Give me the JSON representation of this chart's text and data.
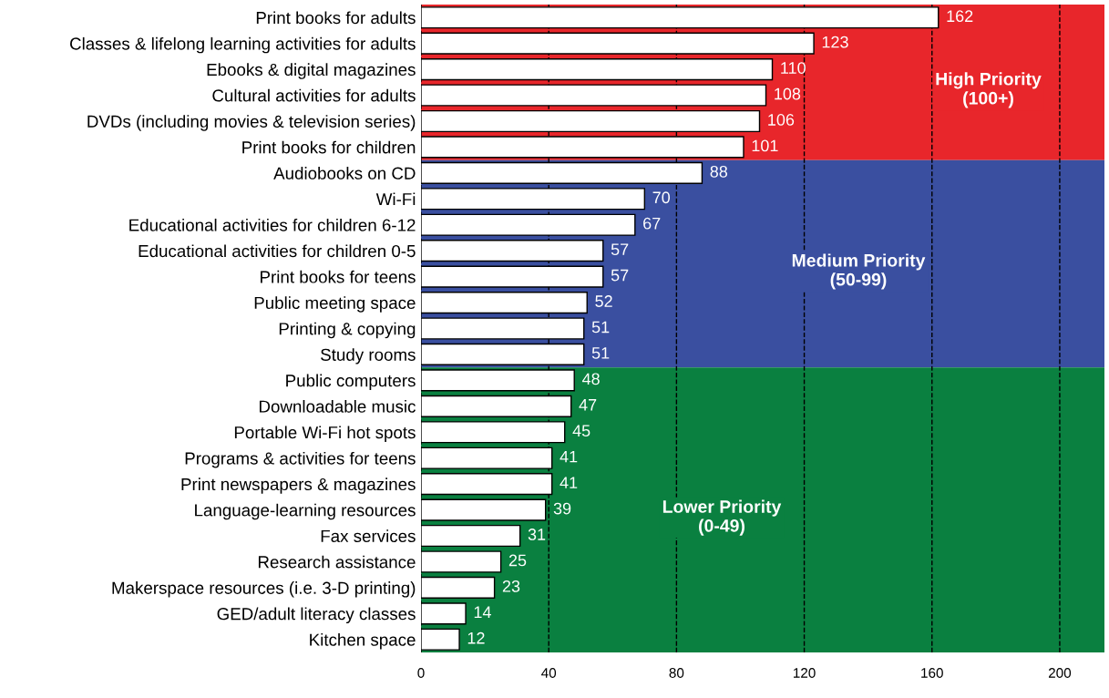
{
  "chart_data": {
    "type": "bar",
    "orientation": "horizontal",
    "categories": [
      "Print books for adults",
      "Classes & lifelong learning activities for adults",
      "Ebooks & digital magazines",
      "Cultural activities for adults",
      "DVDs (including movies & television series)",
      "Print books for children",
      "Audiobooks on CD",
      "Wi-Fi",
      "Educational activities for children 6-12",
      "Educational activities for children 0-5",
      "Print books for teens",
      "Public meeting space",
      "Printing & copying",
      "Study rooms",
      "Public computers",
      "Downloadable music",
      "Portable Wi-Fi hot spots",
      "Programs & activities for teens",
      "Print newspapers & magazines",
      "Language-learning resources",
      "Fax services",
      "Research assistance",
      "Makerspace resources (i.e. 3-D printing)",
      "GED/adult literacy classes",
      "Kitchen space"
    ],
    "values": [
      162,
      123,
      110,
      108,
      106,
      101,
      88,
      70,
      67,
      57,
      57,
      52,
      51,
      51,
      48,
      47,
      45,
      41,
      41,
      39,
      31,
      25,
      23,
      14,
      12
    ],
    "color": "#ffffff",
    "data_labels": true,
    "xlim": [
      0,
      214
    ],
    "xticks": [
      0,
      40,
      80,
      120,
      160,
      200
    ],
    "grid": "x",
    "line_style": "dashed",
    "bands": [
      {
        "axis": "y",
        "from": "Print books for adults",
        "to": "Print books for children",
        "label": "High Priority\n(100+)",
        "color": "#e8262b"
      },
      {
        "axis": "y",
        "from": "Audiobooks on CD",
        "to": "Study rooms",
        "label": "Medium Priority\n(50-99)",
        "color": "#3a4fa0"
      },
      {
        "axis": "y",
        "from": "Public computers",
        "to": "Kitchen space",
        "label": "Lower Priority\n(0-49)",
        "color": "#0a8040"
      }
    ]
  }
}
